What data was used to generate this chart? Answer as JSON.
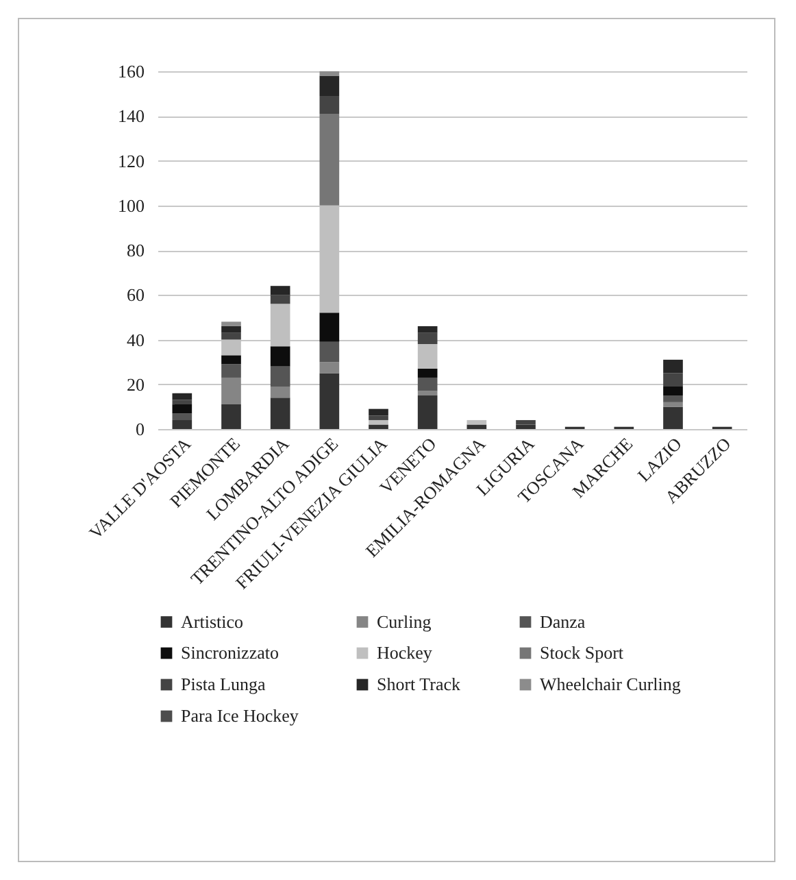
{
  "chart_data": {
    "type": "bar",
    "stacked": true,
    "categories": [
      "VALLE D'AOSTA",
      "PIEMONTE",
      "LOMBARDIA",
      "TRENTINO-ALTO ADIGE",
      "FRIULI-VENEZIA GIULIA",
      "VENETO",
      "EMILIA-ROMAGNA",
      "LIGURIA",
      "TOSCANA",
      "MARCHE",
      "LAZIO",
      "ABRUZZO"
    ],
    "series": [
      {
        "name": "Artistico",
        "color": "#333333",
        "values": [
          4,
          11,
          14,
          25,
          2,
          15,
          2,
          2,
          1,
          1,
          10,
          1
        ]
      },
      {
        "name": "Curling",
        "color": "#858585",
        "values": [
          null,
          12,
          5,
          5,
          null,
          2,
          null,
          null,
          null,
          null,
          2,
          null
        ]
      },
      {
        "name": "Danza",
        "color": "#555555",
        "values": [
          3,
          6,
          9,
          9,
          null,
          6,
          null,
          null,
          null,
          null,
          3,
          null
        ]
      },
      {
        "name": "Sincronizzato",
        "color": "#0d0d0d",
        "values": [
          4,
          4,
          9,
          13,
          null,
          4,
          null,
          null,
          null,
          null,
          4,
          null
        ]
      },
      {
        "name": "Hockey",
        "color": "#bfbfbf",
        "values": [
          null,
          7,
          19,
          48,
          2,
          11,
          2,
          null,
          null,
          null,
          null,
          null
        ]
      },
      {
        "name": "Stock Sport",
        "color": "#767676",
        "values": [
          null,
          null,
          null,
          41,
          null,
          null,
          null,
          null,
          null,
          null,
          null,
          null
        ]
      },
      {
        "name": "Pista Lunga",
        "color": "#444444",
        "values": [
          2,
          3,
          4,
          8,
          2,
          5,
          null,
          2,
          null,
          null,
          6,
          null
        ]
      },
      {
        "name": "Short Track",
        "color": "#262626",
        "values": [
          3,
          3,
          4,
          9,
          3,
          3,
          null,
          null,
          null,
          null,
          6,
          null
        ]
      },
      {
        "name": "Wheelchair Curling",
        "color": "#8c8c8c",
        "values": [
          null,
          2,
          null,
          2,
          null,
          null,
          null,
          null,
          null,
          null,
          null,
          null
        ]
      },
      {
        "name": "Para Ice Hockey",
        "color": "#4d4d4d",
        "values": [
          null,
          null,
          null,
          null,
          null,
          null,
          null,
          null,
          null,
          null,
          null,
          null
        ]
      }
    ],
    "ylim": [
      0,
      160
    ],
    "yticks": [
      0,
      20,
      40,
      60,
      80,
      100,
      120,
      140,
      160
    ],
    "grid": "y",
    "legend": "bottom"
  }
}
